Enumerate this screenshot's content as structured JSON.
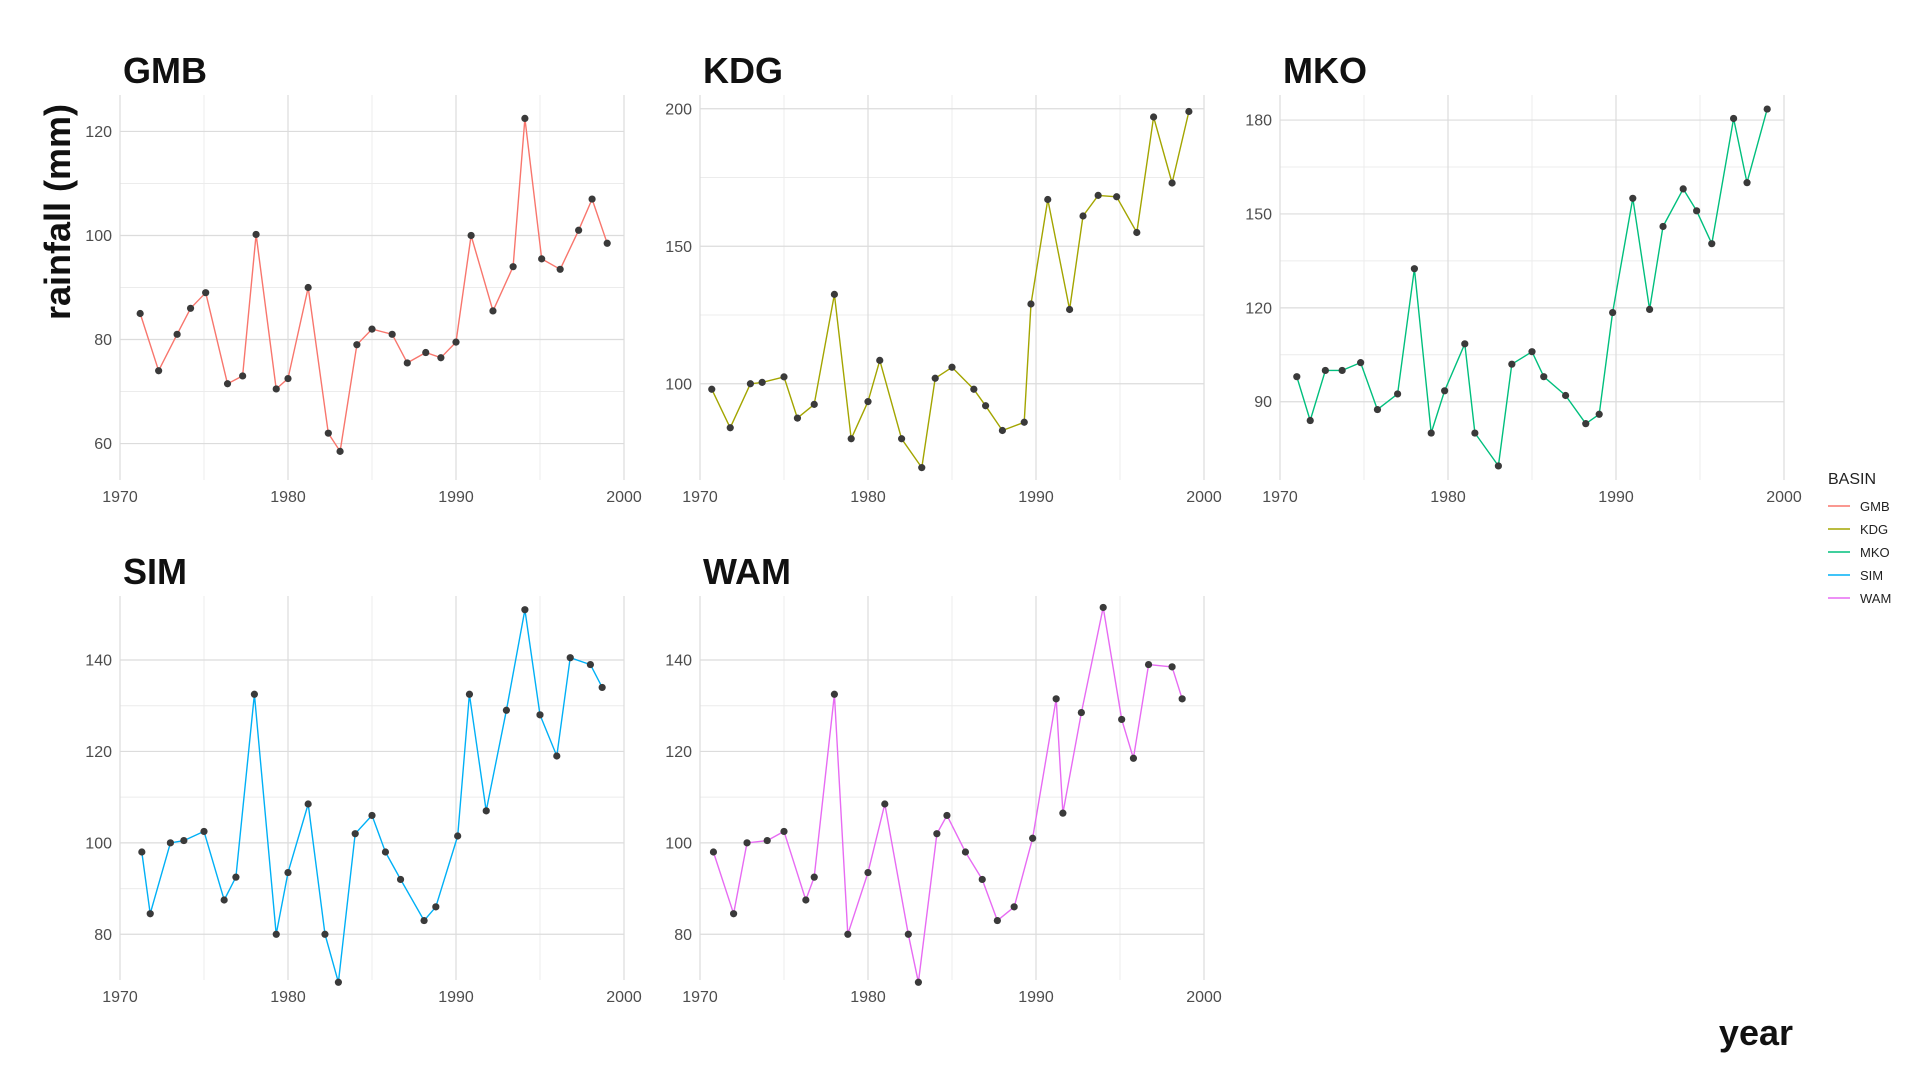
{
  "chart_data": [
    {
      "type": "line",
      "title": "GMB",
      "color": "#F8766D",
      "xlim": [
        1970,
        2000
      ],
      "ylim": [
        53,
        127
      ],
      "x_ticks": [
        1970,
        1980,
        1990,
        2000
      ],
      "y_ticks": [
        60,
        80,
        100,
        120
      ],
      "x": [
        1971.2,
        1972.3,
        1973.4,
        1974.2,
        1975.1,
        1976.4,
        1977.3,
        1978.1,
        1979.3,
        1980,
        1981.2,
        1982.4,
        1983.1,
        1984.1,
        1985,
        1986.2,
        1987.1,
        1988.2,
        1989.1,
        1990,
        1990.9,
        1992.2,
        1993.4,
        1994.1,
        1995.1,
        1996.2,
        1997.3,
        1998.1,
        1999
      ],
      "values": [
        85,
        74,
        81,
        86,
        89,
        71.5,
        73,
        100.2,
        70.5,
        72.5,
        90,
        62,
        58.5,
        79,
        82,
        81,
        75.5,
        77.5,
        76.5,
        79.5,
        100,
        85.5,
        94,
        122.5,
        95.5,
        93.5,
        101,
        107,
        98.5
      ]
    },
    {
      "type": "line",
      "title": "KDG",
      "color": "#A3A500",
      "xlim": [
        1970,
        2000
      ],
      "ylim": [
        65,
        205
      ],
      "x_ticks": [
        1970,
        1980,
        1990,
        2000
      ],
      "y_ticks": [
        100,
        150,
        200
      ],
      "x": [
        1970.7,
        1971.8,
        1973,
        1973.7,
        1975,
        1975.8,
        1976.8,
        1978,
        1979,
        1980,
        1980.7,
        1982,
        1983.2,
        1984,
        1985,
        1986.3,
        1987,
        1988,
        1989.3,
        1989.7,
        1990.7,
        1992,
        1992.8,
        1993.7,
        1994.8,
        1996,
        1997,
        1998.1,
        1999.1
      ],
      "values": [
        98,
        84,
        100,
        100.5,
        102.5,
        87.5,
        92.5,
        132.5,
        80,
        93.5,
        108.5,
        80,
        69.5,
        102,
        106,
        98,
        92,
        83,
        86,
        129,
        167,
        127,
        161,
        168.5,
        168,
        155,
        197,
        173,
        199
      ]
    },
    {
      "type": "line",
      "title": "MKO",
      "color": "#00BF7D",
      "xlim": [
        1970,
        2000
      ],
      "ylim": [
        65,
        188
      ],
      "x_ticks": [
        1970,
        1980,
        1990,
        2000
      ],
      "y_ticks": [
        90,
        120,
        150,
        180
      ],
      "x": [
        1971,
        1971.8,
        1972.7,
        1973.7,
        1974.8,
        1975.8,
        1977,
        1978,
        1979,
        1979.8,
        1981,
        1981.6,
        1983,
        1983.8,
        1985,
        1985.7,
        1987,
        1988.2,
        1989,
        1989.8,
        1991,
        1992,
        1992.8,
        1994,
        1994.8,
        1995.7,
        1997,
        1997.8,
        1999
      ],
      "values": [
        98,
        84,
        100,
        100,
        102.5,
        87.5,
        92.5,
        132.5,
        80,
        93.5,
        108.5,
        80,
        69.5,
        102,
        106,
        98,
        92,
        83,
        86,
        118.5,
        155,
        119.5,
        146,
        158,
        151,
        140.5,
        180.5,
        160,
        183.5
      ]
    },
    {
      "type": "line",
      "title": "SIM",
      "color": "#00B0F6",
      "xlim": [
        1970,
        2000
      ],
      "ylim": [
        70,
        154
      ],
      "x_ticks": [
        1970,
        1980,
        1990,
        2000
      ],
      "y_ticks": [
        80,
        100,
        120,
        140
      ],
      "x": [
        1971.3,
        1971.8,
        1973,
        1973.8,
        1975,
        1976.2,
        1976.9,
        1978,
        1979.3,
        1980,
        1981.2,
        1982.2,
        1983,
        1984,
        1985,
        1985.8,
        1986.7,
        1988.1,
        1988.8,
        1990.1,
        1990.8,
        1991.8,
        1993,
        1994.1,
        1995,
        1996,
        1996.8,
        1998,
        1998.7
      ],
      "values": [
        98,
        84.5,
        100,
        100.5,
        102.5,
        87.5,
        92.5,
        132.5,
        80,
        93.5,
        108.5,
        80,
        69.5,
        102,
        106,
        98,
        92,
        83,
        86,
        101.5,
        132.5,
        107,
        129,
        151,
        128,
        119,
        140.5,
        139,
        134
      ]
    },
    {
      "type": "line",
      "title": "WAM",
      "color": "#E76BF3",
      "xlim": [
        1970,
        2000
      ],
      "ylim": [
        70,
        154
      ],
      "x_ticks": [
        1970,
        1980,
        1990,
        2000
      ],
      "y_ticks": [
        80,
        100,
        120,
        140
      ],
      "x": [
        1970.8,
        1972,
        1972.8,
        1974,
        1975,
        1976.3,
        1976.8,
        1978,
        1978.8,
        1980,
        1981,
        1982.4,
        1983,
        1984.1,
        1984.7,
        1985.8,
        1986.8,
        1987.7,
        1988.7,
        1989.8,
        1991.2,
        1991.6,
        1992.7,
        1994,
        1995.1,
        1995.8,
        1996.7,
        1998.1,
        1998.7
      ],
      "values": [
        98,
        84.5,
        100,
        100.5,
        102.5,
        87.5,
        92.5,
        132.5,
        80,
        93.5,
        108.5,
        80,
        69.5,
        102,
        106,
        98,
        92,
        83,
        86,
        101,
        131.5,
        106.5,
        128.5,
        151.5,
        127,
        118.5,
        139,
        138.5,
        131.5
      ]
    }
  ],
  "axis_titles": {
    "y": "rainfall (mm)",
    "x": "year"
  },
  "legend": {
    "title": "BASIN",
    "placement": "right",
    "entries": [
      {
        "label": "GMB",
        "color": "#F8766D"
      },
      {
        "label": "KDG",
        "color": "#A3A500"
      },
      {
        "label": "MKO",
        "color": "#00BF7D"
      },
      {
        "label": "SIM",
        "color": "#00B0F6"
      },
      {
        "label": "WAM",
        "color": "#E76BF3"
      }
    ]
  },
  "style": {
    "grid": true,
    "point_color": "#3a3a3a"
  }
}
